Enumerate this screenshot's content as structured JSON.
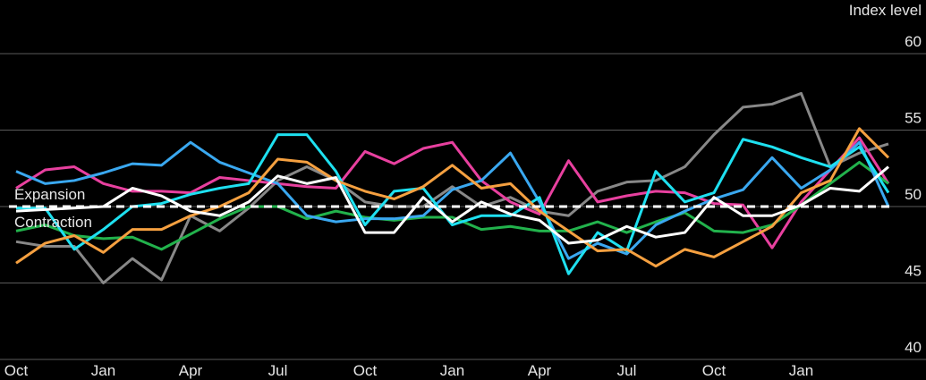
{
  "chart_data": {
    "type": "line",
    "y_axis_label": "Index level",
    "annotations": [
      "Expansion",
      "Contraction"
    ],
    "threshold": 50,
    "categories": [
      "Oct",
      null,
      null,
      "Jan",
      null,
      null,
      "Apr",
      null,
      null,
      "Jul",
      null,
      null,
      "Oct",
      null,
      null,
      "Jan",
      null,
      null,
      "Apr",
      null,
      null,
      "Jul",
      null,
      null,
      "Oct",
      null,
      null,
      "Jan",
      null,
      null,
      null
    ],
    "ylim": [
      40,
      60
    ],
    "yticks": [
      40,
      45,
      50,
      55,
      60
    ],
    "grid": true,
    "series": [
      {
        "color": "#888888",
        "values": [
          47.7,
          47.4,
          47.4,
          45,
          46.6,
          45.2,
          49.4,
          48.4,
          49.9,
          51.7,
          52.6,
          51.7,
          50.3,
          50,
          50,
          51.3,
          50,
          50.6,
          49.7,
          49.4,
          51,
          51.6,
          51.7,
          52.6,
          54.7,
          56.5,
          56.7,
          57.4,
          52.6,
          53.5,
          54.1
        ]
      },
      {
        "color": "#e8409f",
        "values": [
          51.2,
          52.4,
          52.6,
          51.5,
          51,
          51,
          50.9,
          51.9,
          51.7,
          51.5,
          51.3,
          51.2,
          53.6,
          52.8,
          53.8,
          54.2,
          51.7,
          50.3,
          49.5,
          53,
          50.3,
          50.7,
          51,
          50.9,
          50.2,
          50.1,
          47.3,
          50.3,
          52.4,
          54.5,
          51.5
        ]
      },
      {
        "color": "#22b24c",
        "values": [
          48.4,
          48.8,
          48.1,
          47.9,
          48,
          47.2,
          48.2,
          49.2,
          50,
          50,
          49.2,
          49.7,
          49.3,
          49.1,
          49.3,
          49.3,
          48.5,
          48.7,
          48.4,
          48.4,
          49,
          48.3,
          49,
          49.6,
          48.4,
          48.3,
          48.8,
          50.1,
          51.5,
          52.9,
          51.5
        ]
      },
      {
        "color": "#3aa8f0",
        "values": [
          52.3,
          51.5,
          51.7,
          52.2,
          52.8,
          52.7,
          54.2,
          52.9,
          52.2,
          51.5,
          49.4,
          49,
          49.2,
          49.2,
          49.4,
          51.1,
          51.7,
          53.5,
          50.3,
          46.6,
          47.6,
          46.9,
          48.8,
          49.7,
          50.5,
          51.1,
          53.2,
          51.2,
          52.4,
          54.2,
          50
        ]
      },
      {
        "color": "#1ee0f0",
        "values": [
          49.9,
          49.9,
          47.2,
          48.5,
          50,
          50.2,
          50.8,
          51.2,
          51.5,
          54.7,
          54.7,
          52.3,
          48.8,
          51,
          51.2,
          48.8,
          49.4,
          49.4,
          50.6,
          45.6,
          48.3,
          47.1,
          52.3,
          50.3,
          50.9,
          54.4,
          53.9,
          53.2,
          52.6,
          53.9,
          50.9
        ]
      },
      {
        "color": "#f5a040",
        "values": [
          46.3,
          47.6,
          48.1,
          47,
          48.5,
          48.5,
          49.4,
          50,
          50.9,
          53.1,
          52.9,
          51.7,
          51,
          50.5,
          51.3,
          52.7,
          51.2,
          51.5,
          49.7,
          48.4,
          47.1,
          47.2,
          46.1,
          47.2,
          46.7,
          47.7,
          48.7,
          50.9,
          51.7,
          55.1,
          53.2
        ]
      },
      {
        "color": "#ffffff",
        "values": [
          49.7,
          49.8,
          49.9,
          50,
          51.2,
          50.7,
          49.7,
          49.4,
          50.3,
          52,
          51.5,
          51.9,
          48.3,
          48.3,
          50.6,
          49,
          50.3,
          49.5,
          49.1,
          47.6,
          47.8,
          48.7,
          48,
          48.3,
          50.6,
          49.4,
          49.4,
          50.1,
          51.2,
          51,
          52.6
        ]
      }
    ]
  }
}
